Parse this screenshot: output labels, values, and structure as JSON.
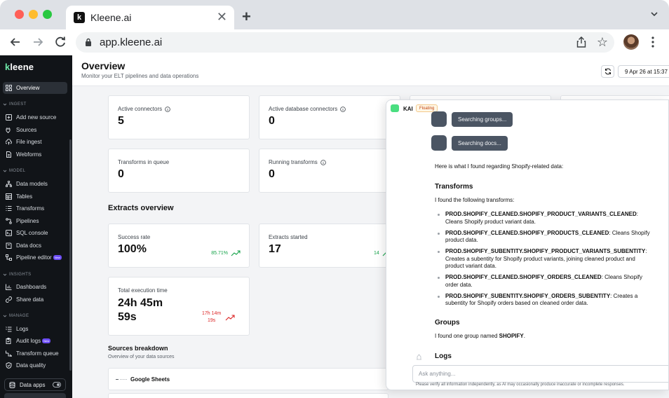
{
  "browser": {
    "tab_title": "Kleene.ai",
    "tab_close": "✕",
    "new_tab": "+",
    "url": "app.kleene.ai"
  },
  "sidebar": {
    "brand": "kleene",
    "overview": "Overview",
    "sections": [
      {
        "label": "INGEST",
        "items": [
          "Add new source",
          "Sources",
          "File ingest",
          "Webforms"
        ]
      },
      {
        "label": "MODEL",
        "items": [
          "Data models",
          "Tables",
          "Transforms",
          "Pipelines",
          "SQL console",
          "Data docs",
          "Pipeline editor"
        ]
      },
      {
        "label": "INSIGHTS",
        "items": [
          "Dashboards",
          "Share data"
        ]
      },
      {
        "label": "MANAGE",
        "items": [
          "Logs",
          "Audit logs",
          "Transform queue",
          "Data quality"
        ]
      }
    ],
    "new_badge": "New",
    "data_apps": "Data apps"
  },
  "header": {
    "title": "Overview",
    "subtitle": "Monitor your ELT pipelines and data operations",
    "date": "9 Apr 26 at 15:37"
  },
  "cards": {
    "active_connectors": {
      "label": "Active connectors",
      "value": "5"
    },
    "active_db_connectors": {
      "label": "Active database connectors",
      "value": "0"
    },
    "transforms_queue": {
      "label": "Transforms in queue",
      "value": "0"
    },
    "running_transforms": {
      "label": "Running transforms",
      "value": "0"
    }
  },
  "extracts": {
    "title": "Extracts overview",
    "success_rate": {
      "label": "Success rate",
      "value": "100%",
      "trend": "85.71%"
    },
    "extracts_started": {
      "label": "Extracts started",
      "value": "17",
      "trend": "14"
    },
    "exec_time": {
      "label": "Total execution time",
      "value_line1": "24h 45m",
      "value_line2": "59s",
      "trend_line1": "17h 14m",
      "trend_line2": "19s"
    }
  },
  "sources": {
    "title": "Sources breakdown",
    "subtitle": "Overview of your data sources",
    "rows": [
      "Google Sheets"
    ]
  },
  "kai": {
    "name": "KAI",
    "badge": "Floating",
    "tool_1": "Searching groups...",
    "tool_2": "Searching docs...",
    "intro": "Here is what I found regarding Shopify-related data:",
    "transforms_heading": "Transforms",
    "transforms_intro": "I found the following transforms:",
    "transforms": [
      {
        "name": "PROD.SHOPIFY_CLEANED.SHOPIFY_PRODUCT_VARIANTS_CLEANED",
        "desc": ": Cleans Shopify product variant data."
      },
      {
        "name": "PROD.SHOPIFY_CLEANED.SHOPIFY_PRODUCTS_CLEANED",
        "desc": ": Cleans Shopify product data."
      },
      {
        "name": "PROD.SHOPIFY_SUBENTITY.SHOPIFY_PRODUCT_VARIANTS_SUBENTITY",
        "desc": ": Creates a subentity for Shopify product variants, joining cleaned product and product variant data."
      },
      {
        "name": "PROD.SHOPIFY_CLEANED.SHOPIFY_ORDERS_CLEANED",
        "desc": ": Cleans Shopify order data."
      },
      {
        "name": "PROD.SHOPIFY_SUBENTITY.SHOPIFY_ORDERS_SUBENTITY",
        "desc": ": Creates a subentity for Shopify orders based on cleaned order data."
      }
    ],
    "groups_heading": "Groups",
    "groups_text": "I found one group named ",
    "groups_name": "SHOPIFY",
    "groups_end": ".",
    "logs_heading": "Logs",
    "ask_placeholder": "Ask anything...",
    "disclaimer": "Please verify all information independently, as AI may occasionally produce inaccurate or incomplete responses."
  },
  "colors": {
    "accent_green": "#16a34a",
    "alert_red": "#dc2626",
    "sidebar_bg": "#111418"
  }
}
